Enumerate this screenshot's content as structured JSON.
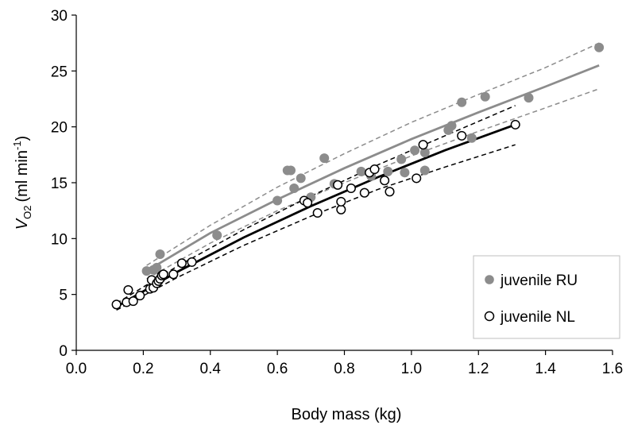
{
  "chart_data": {
    "type": "scatter",
    "title": "",
    "xlabel": "Body mass (kg)",
    "ylabel": {
      "symbol": "V",
      "subscript": "O2",
      "text": "(ml min",
      "superscript": "-1",
      "close": ")"
    },
    "xlim": [
      0,
      1.6
    ],
    "ylim": [
      0,
      30
    ],
    "xticks": [
      "0.0",
      "0.2",
      "0.4",
      "0.6",
      "0.8",
      "1.0",
      "1.2",
      "1.4",
      "1.6"
    ],
    "yticks": [
      "0",
      "5",
      "10",
      "15",
      "20",
      "25",
      "30"
    ],
    "grid": false,
    "legend_position": "bottom-right",
    "colors": {
      "ru": "#8c8c8c",
      "nl": "#000000",
      "legend_border": "#bfbfbf"
    },
    "series": [
      {
        "name": "juvenile RU",
        "marker": "filled-circle",
        "points": [
          [
            0.21,
            7.1
          ],
          [
            0.23,
            7.2
          ],
          [
            0.24,
            7.4
          ],
          [
            0.25,
            8.6
          ],
          [
            0.42,
            10.3
          ],
          [
            0.6,
            13.4
          ],
          [
            0.63,
            16.1
          ],
          [
            0.64,
            16.1
          ],
          [
            0.65,
            14.5
          ],
          [
            0.67,
            15.4
          ],
          [
            0.7,
            13.7
          ],
          [
            0.74,
            17.2
          ],
          [
            0.77,
            14.9
          ],
          [
            0.85,
            16.0
          ],
          [
            0.88,
            15.6
          ],
          [
            0.93,
            16.0
          ],
          [
            0.97,
            17.1
          ],
          [
            0.98,
            15.9
          ],
          [
            1.01,
            17.9
          ],
          [
            1.04,
            17.7
          ],
          [
            1.04,
            16.1
          ],
          [
            1.11,
            19.7
          ],
          [
            1.12,
            20.1
          ],
          [
            1.15,
            22.2
          ],
          [
            1.18,
            19.0
          ],
          [
            1.22,
            22.7
          ],
          [
            1.35,
            22.6
          ],
          [
            1.56,
            27.1
          ]
        ],
        "fit": [
          [
            0.21,
            7.1
          ],
          [
            0.4,
            10.5
          ],
          [
            0.6,
            13.5
          ],
          [
            0.8,
            16.3
          ],
          [
            1.0,
            18.9
          ],
          [
            1.2,
            21.3
          ],
          [
            1.4,
            23.6
          ],
          [
            1.56,
            25.5
          ]
        ],
        "ci_upper": [
          [
            0.21,
            7.6
          ],
          [
            0.4,
            11.2
          ],
          [
            0.6,
            14.6
          ],
          [
            0.8,
            17.6
          ],
          [
            1.0,
            20.4
          ],
          [
            1.2,
            22.9
          ],
          [
            1.4,
            25.3
          ],
          [
            1.56,
            27.5
          ]
        ],
        "ci_lower": [
          [
            0.21,
            6.4
          ],
          [
            0.4,
            9.6
          ],
          [
            0.6,
            12.5
          ],
          [
            0.8,
            15.0
          ],
          [
            1.0,
            17.4
          ],
          [
            1.2,
            19.6
          ],
          [
            1.4,
            21.7
          ],
          [
            1.56,
            23.4
          ]
        ]
      },
      {
        "name": "juvenile NL",
        "marker": "open-circle",
        "points": [
          [
            0.12,
            4.1
          ],
          [
            0.15,
            4.3
          ],
          [
            0.155,
            5.4
          ],
          [
            0.17,
            4.4
          ],
          [
            0.19,
            4.9
          ],
          [
            0.22,
            5.5
          ],
          [
            0.23,
            5.6
          ],
          [
            0.225,
            6.3
          ],
          [
            0.24,
            6.0
          ],
          [
            0.245,
            6.2
          ],
          [
            0.25,
            6.4
          ],
          [
            0.255,
            6.7
          ],
          [
            0.26,
            6.8
          ],
          [
            0.29,
            6.8
          ],
          [
            0.315,
            7.8
          ],
          [
            0.345,
            7.9
          ],
          [
            0.68,
            13.4
          ],
          [
            0.69,
            13.2
          ],
          [
            0.72,
            12.3
          ],
          [
            0.78,
            14.8
          ],
          [
            0.79,
            12.6
          ],
          [
            0.79,
            13.3
          ],
          [
            0.82,
            14.5
          ],
          [
            0.86,
            14.1
          ],
          [
            0.875,
            15.9
          ],
          [
            0.89,
            16.2
          ],
          [
            0.92,
            15.2
          ],
          [
            0.935,
            14.2
          ],
          [
            1.015,
            15.4
          ],
          [
            1.035,
            18.4
          ],
          [
            1.15,
            19.2
          ],
          [
            1.31,
            20.2
          ]
        ],
        "fit": [
          [
            0.12,
            3.9
          ],
          [
            0.3,
            7.0
          ],
          [
            0.5,
            10.1
          ],
          [
            0.7,
            12.9
          ],
          [
            0.9,
            15.5
          ],
          [
            1.1,
            17.9
          ],
          [
            1.31,
            20.2
          ]
        ],
        "ci_upper": [
          [
            0.12,
            4.2
          ],
          [
            0.3,
            7.5
          ],
          [
            0.5,
            10.8
          ],
          [
            0.7,
            13.8
          ],
          [
            0.9,
            16.6
          ],
          [
            1.1,
            19.2
          ],
          [
            1.31,
            21.9
          ]
        ],
        "ci_lower": [
          [
            0.12,
            3.6
          ],
          [
            0.3,
            6.5
          ],
          [
            0.5,
            9.4
          ],
          [
            0.7,
            12.0
          ],
          [
            0.9,
            14.4
          ],
          [
            1.1,
            16.4
          ],
          [
            1.31,
            18.4
          ]
        ]
      }
    ]
  }
}
